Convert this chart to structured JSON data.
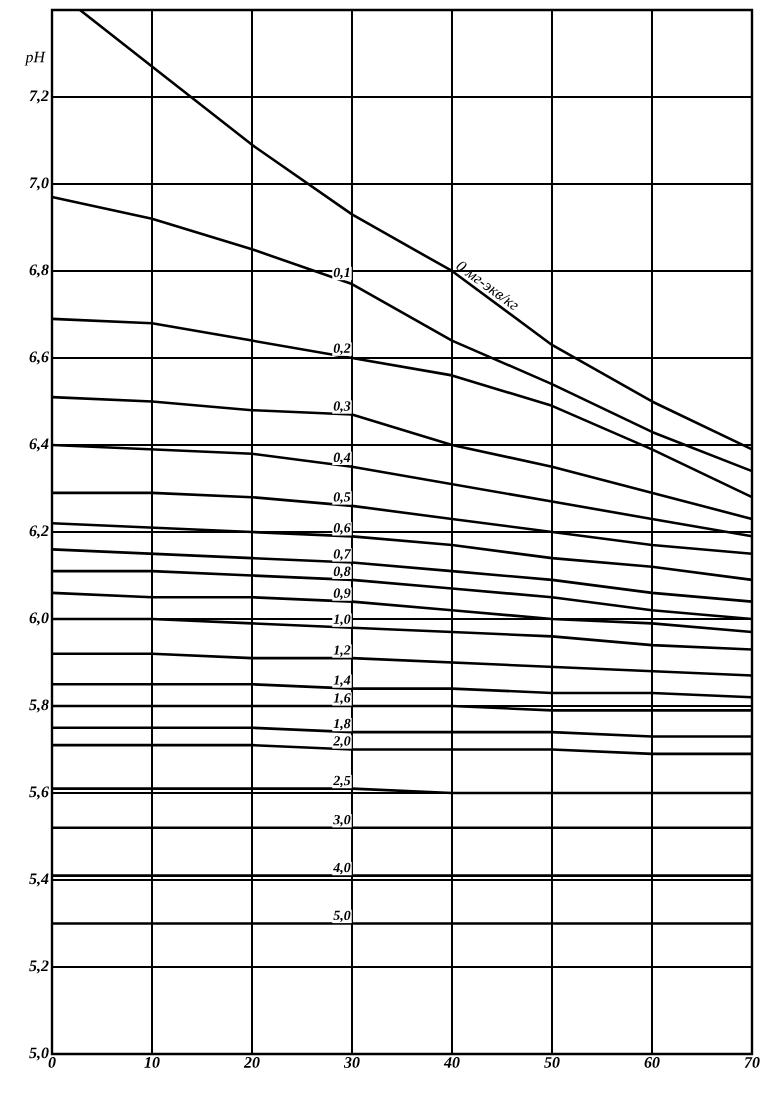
{
  "chart_data": {
    "type": "line",
    "ylabel": "pH",
    "x": [
      0,
      10,
      20,
      30,
      40,
      50,
      60,
      70
    ],
    "xlim": [
      0,
      70
    ],
    "ylim": [
      5.0,
      7.4
    ],
    "xticks": [
      0,
      10,
      20,
      30,
      40,
      50,
      60,
      70
    ],
    "yticks": [
      {
        "value": 5.0,
        "label": "5,0"
      },
      {
        "value": 5.2,
        "label": "5,2"
      },
      {
        "value": 5.4,
        "label": "5,4"
      },
      {
        "value": 5.6,
        "label": "5,6"
      },
      {
        "value": 5.8,
        "label": "5,8"
      },
      {
        "value": 6.0,
        "label": "6,0"
      },
      {
        "value": 6.2,
        "label": "6,2"
      },
      {
        "value": 6.4,
        "label": "6,4"
      },
      {
        "value": 6.6,
        "label": "6,6"
      },
      {
        "value": 6.8,
        "label": "6,8"
      },
      {
        "value": 7.0,
        "label": "7,0"
      },
      {
        "value": 7.2,
        "label": "7,2"
      },
      {
        "value": 7.4,
        "label": null
      }
    ],
    "grid": true,
    "marker": "none",
    "line_style": "solid",
    "series": [
      {
        "name": "0 мг-экв/кг",
        "color": "#000000",
        "x": [
          2.8,
          10,
          20,
          30,
          40,
          50,
          60,
          70
        ],
        "values": [
          7.4,
          7.27,
          7.09,
          6.93,
          6.8,
          6.63,
          6.5,
          6.39
        ]
      },
      {
        "name": "0,1",
        "color": "#000000",
        "values": [
          6.97,
          6.92,
          6.85,
          6.77,
          6.64,
          6.54,
          6.43,
          6.34
        ]
      },
      {
        "name": "0,2",
        "color": "#000000",
        "values": [
          6.69,
          6.68,
          6.64,
          6.6,
          6.56,
          6.49,
          6.39,
          6.28
        ]
      },
      {
        "name": "0,3",
        "color": "#000000",
        "values": [
          6.51,
          6.5,
          6.48,
          6.47,
          6.4,
          6.35,
          6.29,
          6.23
        ]
      },
      {
        "name": "0,4",
        "color": "#000000",
        "values": [
          6.4,
          6.39,
          6.38,
          6.35,
          6.31,
          6.27,
          6.23,
          6.19
        ]
      },
      {
        "name": "0,5",
        "color": "#000000",
        "values": [
          6.29,
          6.29,
          6.28,
          6.26,
          6.23,
          6.2,
          6.17,
          6.15
        ]
      },
      {
        "name": "0,6",
        "color": "#000000",
        "values": [
          6.22,
          6.21,
          6.2,
          6.19,
          6.17,
          6.14,
          6.12,
          6.09
        ]
      },
      {
        "name": "0,7",
        "color": "#000000",
        "values": [
          6.16,
          6.15,
          6.14,
          6.13,
          6.11,
          6.09,
          6.06,
          6.04
        ]
      },
      {
        "name": "0,8",
        "color": "#000000",
        "values": [
          6.11,
          6.11,
          6.1,
          6.09,
          6.07,
          6.05,
          6.02,
          6.0
        ]
      },
      {
        "name": "0,9",
        "color": "#000000",
        "values": [
          6.06,
          6.05,
          6.05,
          6.04,
          6.02,
          6.0,
          5.99,
          5.97
        ]
      },
      {
        "name": "1,0",
        "color": "#000000",
        "values": [
          6.0,
          6.0,
          5.99,
          5.98,
          5.97,
          5.96,
          5.94,
          5.93
        ]
      },
      {
        "name": "1,2",
        "color": "#000000",
        "values": [
          5.92,
          5.92,
          5.91,
          5.91,
          5.9,
          5.89,
          5.88,
          5.87
        ]
      },
      {
        "name": "1,4",
        "color": "#000000",
        "values": [
          5.85,
          5.85,
          5.85,
          5.84,
          5.84,
          5.83,
          5.83,
          5.82
        ]
      },
      {
        "name": "1,6",
        "color": "#000000",
        "values": [
          5.8,
          5.8,
          5.8,
          5.8,
          5.8,
          5.79,
          5.79,
          5.79
        ]
      },
      {
        "name": "1,8",
        "color": "#000000",
        "values": [
          5.75,
          5.75,
          5.75,
          5.74,
          5.74,
          5.74,
          5.73,
          5.73
        ]
      },
      {
        "name": "2,0",
        "color": "#000000",
        "values": [
          5.71,
          5.71,
          5.71,
          5.7,
          5.7,
          5.7,
          5.69,
          5.69
        ]
      },
      {
        "name": "2,5",
        "color": "#000000",
        "values": [
          5.61,
          5.61,
          5.61,
          5.61,
          5.6,
          5.6,
          5.6,
          5.6
        ]
      },
      {
        "name": "3,0",
        "color": "#000000",
        "values": [
          5.52,
          5.52,
          5.52,
          5.52,
          5.52,
          5.52,
          5.52,
          5.52
        ]
      },
      {
        "name": "4,0",
        "color": "#000000",
        "values": [
          5.41,
          5.41,
          5.41,
          5.41,
          5.41,
          5.41,
          5.41,
          5.41
        ]
      },
      {
        "name": "5,0",
        "color": "#000000",
        "values": [
          5.3,
          5.3,
          5.3,
          5.3,
          5.3,
          5.3,
          5.3,
          5.3
        ]
      }
    ]
  }
}
